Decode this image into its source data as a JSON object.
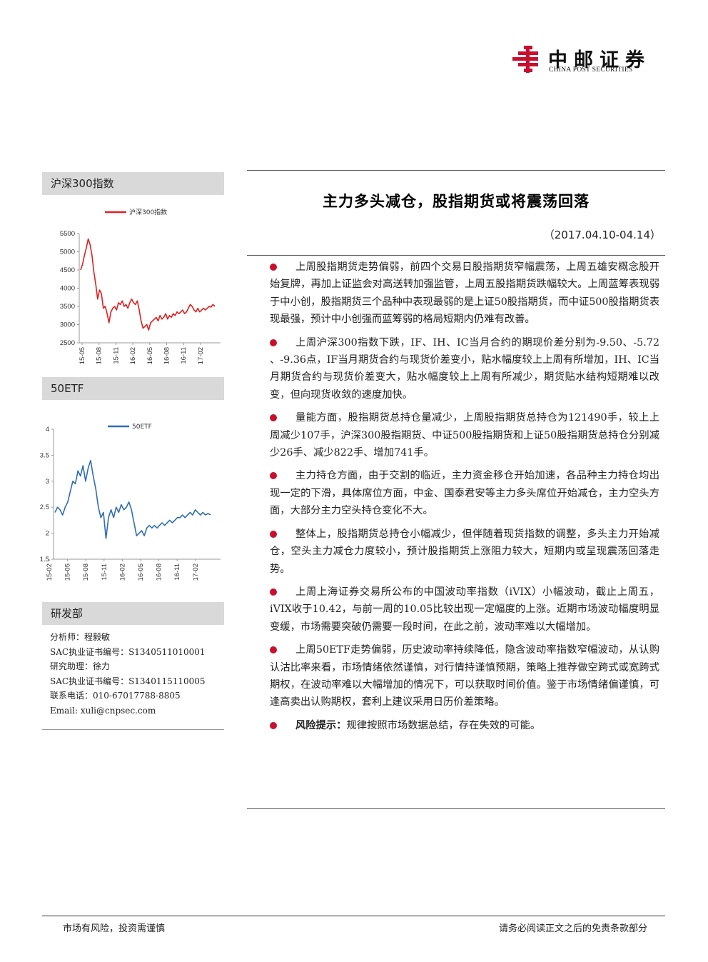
{
  "logo": {
    "name_cn": "中邮证券",
    "name_en": "CHINA POST SECURITIES",
    "brand_color": "#c8102e"
  },
  "sidebar": {
    "chart1_header": "沪深300指数",
    "chart2_header": "50ETF",
    "research_header": "研发部",
    "analyst_lines": [
      "分析师：程毅敏",
      "SAC执业证书编号：S1340511010001",
      "研究助理：徐力",
      "SAC执业证书编号：S1340115110005",
      "联系电话：010-67017788-8805",
      "Email: xuli@cnpsec.com"
    ]
  },
  "report": {
    "title": "主力多头减仓，股指期货或将震荡回落",
    "date_range": "（2017.04.10-04.14）",
    "bullets": [
      "上周股指期货走势偏弱，前四个交易日股指期货窄幅震荡，上周五雄安概念股开始复牌，再加上证监会对高送转加强监管，上周五股指期货跌幅较大。上周蓝筹表现弱于中小创，股指期货三个品种中表现最弱的是上证50股指期货，而中证500股指期货表现最强，预计中小创强而蓝筹弱的格局短期内仍难有改善。",
      "上周沪深300指数下跌，IF、IH、IC当月合约的期现价差分别为-9.50、-5.72 、-9.36点，IF当月期货合约与现货价差变小，贴水幅度较上上周有所增加，IH、IC当月期货合约与现货价差变大，贴水幅度较上上周有所减少，期货贴水结构短期难以改变，但向现货收敛的速度加快。",
      "量能方面，股指期货总持仓量减少，上周股指期货总持仓为121490手，较上上周减少107手，沪深300股指期货、中证500股指期货和上证50股指期货总持仓分别减少26手、减少822手、增加741手。",
      "主力持仓方面，由于交割的临近，主力资金移仓开始加速，各品种主力持仓均出现一定的下滑，具体席位方面，中金、国泰君安等主力多头席位开始减仓，主力空头方面，大部分主力空头持仓变化不大。",
      "整体上，股指期货总持仓小幅减少，但伴随着现货指数的调整，多头主力开始减仓，空头主力减仓力度较小，预计股指期货上涨阻力较大，短期内或呈现震荡回落走势。",
      "上周上海证券交易所公布的中国波动率指数（iVIX）小幅波动，截止上周五，iVIX收于10.42，与前一周的10.05比较出现一定幅度的上涨。近期市场波动幅度明显变缓，市场需要突破仍需要一段时间，在此之前，波动率难以大幅增加。",
      "上周50ETF走势偏弱，历史波动率持续降低，隐含波动率指数窄幅波动，从认购认沽比率来看，市场情绪依然谨慎，对行情持谨慎预期，策略上推荐做空跨式或宽跨式期权，在波动率难以大幅增加的情况下，可以获取时间价值。鉴于市场情绪偏谨慎，可逢高卖出认购期权，套利上建议采用日历价差策略。"
    ],
    "risk_label": "风险提示：",
    "risk_text": "规律按照市场数据总结，存在失效的可能。"
  },
  "footer": {
    "left": "市场有风险，投资需谨慎",
    "right": "请务必阅读正文之后的免责条款部分"
  },
  "chart_data": [
    {
      "type": "line",
      "title": "",
      "series": [
        {
          "name": "沪深300指数",
          "color": "#e32020",
          "values": [
            4500,
            4650,
            4900,
            5100,
            5353,
            5200,
            4900,
            4450,
            4100,
            3700,
            3950,
            3850,
            3450,
            3500,
            3300,
            3050,
            3350,
            3450,
            3500,
            3400,
            3600,
            3550,
            3650,
            3500,
            3550,
            3450,
            3600,
            3700,
            3600,
            3550,
            3650,
            3400,
            3100,
            2900,
            2950,
            3000,
            2850,
            3050,
            3100,
            3150,
            3200,
            3100,
            3250,
            3150,
            3200,
            3300,
            3150,
            3250,
            3200,
            3300,
            3250,
            3350,
            3300,
            3350,
            3400,
            3300,
            3350,
            3450,
            3550,
            3500,
            3400,
            3350,
            3450,
            3350,
            3400,
            3450,
            3400,
            3450,
            3500,
            3480,
            3550,
            3500
          ]
        }
      ],
      "x_tick_labels": [
        "15-05",
        "15-08",
        "15-11",
        "16-02",
        "16-05",
        "16-08",
        "16-11",
        "17-02"
      ],
      "y_ticks": [
        2500,
        3000,
        3500,
        4000,
        4500,
        5000,
        5500
      ],
      "ylim": [
        2500,
        5500
      ],
      "legend": "top"
    },
    {
      "type": "line",
      "title": "",
      "series": [
        {
          "name": "50ETF",
          "color": "#2f6db5",
          "values": [
            2.4,
            2.5,
            2.45,
            2.35,
            2.5,
            2.6,
            2.8,
            3.0,
            2.95,
            3.2,
            3.1,
            3.3,
            3.0,
            3.25,
            3.4,
            3.1,
            2.85,
            2.5,
            2.3,
            2.4,
            1.9,
            2.3,
            2.45,
            2.3,
            2.5,
            2.4,
            2.55,
            2.45,
            2.5,
            2.6,
            2.45,
            2.2,
            1.95,
            2.0,
            2.05,
            1.95,
            2.1,
            2.15,
            2.1,
            2.15,
            2.1,
            2.15,
            2.2,
            2.15,
            2.2,
            2.25,
            2.2,
            2.25,
            2.3,
            2.3,
            2.35,
            2.3,
            2.35,
            2.4,
            2.35,
            2.45,
            2.4,
            2.35,
            2.4,
            2.35,
            2.38,
            2.35
          ]
        }
      ],
      "x_tick_labels": [
        "15-02",
        "15-05",
        "15-08",
        "15-11",
        "16-02",
        "16-05",
        "16-08",
        "16-11",
        "17-02"
      ],
      "y_ticks": [
        1.5,
        2,
        2.5,
        3,
        3.5,
        4
      ],
      "ylim": [
        1.5,
        4
      ],
      "legend": "top"
    }
  ]
}
